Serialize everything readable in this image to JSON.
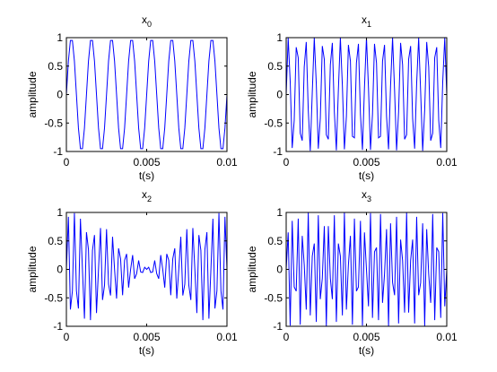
{
  "chart_data": [
    {
      "type": "line",
      "title_base": "x",
      "title_sub": "0",
      "xlabel": "t(s)",
      "ylabel": "amplitude",
      "xlim": [
        0,
        0.01
      ],
      "ylim": [
        -1,
        1
      ],
      "xticks": [
        "0",
        "0.005",
        "0.01"
      ],
      "yticks": [
        "1",
        "0.5",
        "0",
        "-0.5",
        "-1"
      ],
      "grid": false,
      "series": [
        {
          "components": [
            {
              "freq_hz": 800,
              "amp": 1
            }
          ],
          "sample_hz": 8000,
          "color": "#0000ff"
        }
      ]
    },
    {
      "type": "line",
      "title_base": "x",
      "title_sub": "1",
      "xlabel": "t(s)",
      "ylabel": "amplitude",
      "xlim": [
        0,
        0.01
      ],
      "ylim": [
        -1,
        1
      ],
      "xticks": [
        "0",
        "0.005",
        "0.01"
      ],
      "yticks": [
        "1",
        "0.5",
        "0",
        "-0.5",
        "-1"
      ],
      "grid": false,
      "series": [
        {
          "components": [
            {
              "freq_hz": 1850,
              "amp": 1
            }
          ],
          "sample_hz": 8000,
          "color": "#0000ff"
        }
      ]
    },
    {
      "type": "line",
      "title_base": "x",
      "title_sub": "2",
      "xlabel": "t(s)",
      "ylabel": "amplitude",
      "xlim": [
        0,
        0.01
      ],
      "ylim": [
        -1,
        1
      ],
      "xticks": [
        "0",
        "0.005",
        "0.01"
      ],
      "yticks": [
        "1",
        "0.5",
        "0",
        "-0.5",
        "-1"
      ],
      "grid": false,
      "series": [
        {
          "components": [
            {
              "freq_hz": 2450,
              "amp": 0.5
            },
            {
              "freq_hz": 2550,
              "amp": 0.5
            }
          ],
          "sample_hz": 8000,
          "color": "#0000ff"
        }
      ]
    },
    {
      "type": "line",
      "title_base": "x",
      "title_sub": "3",
      "xlabel": "t(s)",
      "ylabel": "amplitude",
      "xlim": [
        0,
        0.01
      ],
      "ylim": [
        -1,
        1
      ],
      "xticks": [
        "0",
        "0.005",
        "0.01"
      ],
      "yticks": [
        "1",
        "0.5",
        "0",
        "-0.5",
        "-1"
      ],
      "grid": false,
      "series": [
        {
          "components": [
            {
              "freq_hz": 3100,
              "amp": 1
            }
          ],
          "sample_hz": 8000,
          "color": "#0000ff"
        }
      ]
    }
  ]
}
